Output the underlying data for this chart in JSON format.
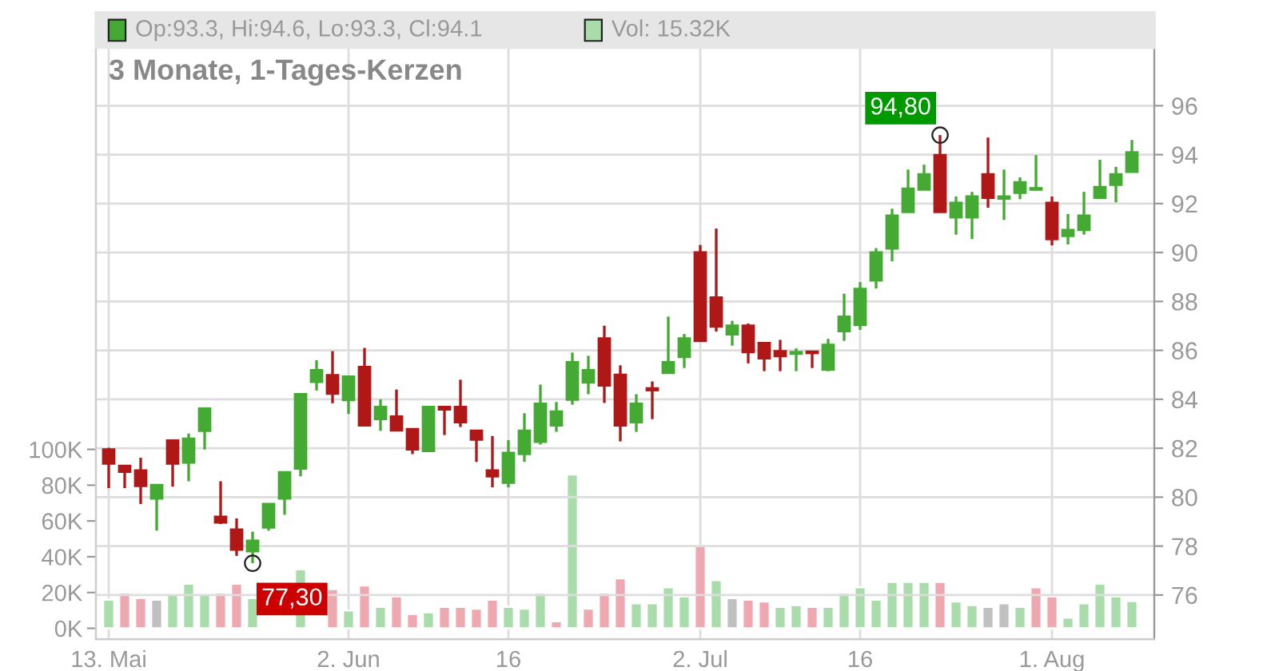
{
  "chart_data": {
    "type": "candlestick",
    "title": "3 Monate, 1-Tages-Kerzen",
    "categories": [
      "13. Mai",
      null,
      null,
      null,
      null,
      null,
      null,
      null,
      null,
      null,
      null,
      null,
      null,
      null,
      null,
      "2. Jun",
      null,
      null,
      null,
      null,
      null,
      null,
      null,
      null,
      null,
      "16",
      null,
      null,
      null,
      null,
      null,
      null,
      null,
      null,
      null,
      null,
      null,
      "2. Jul",
      null,
      null,
      null,
      null,
      null,
      null,
      null,
      null,
      null,
      "16",
      null,
      null,
      null,
      null,
      null,
      null,
      null,
      null,
      null,
      null,
      null,
      "1. Aug",
      null,
      null,
      null,
      null,
      null
    ],
    "series": [
      {
        "type": "bar",
        "axis": "y",
        "values": [
          16,
          20,
          17,
          16,
          19,
          25,
          19,
          20,
          25,
          17,
          null,
          null,
          33,
          null,
          22,
          10,
          24,
          12,
          18,
          8,
          9,
          12,
          12,
          11,
          16,
          12,
          11,
          20,
          4,
          86,
          11,
          20,
          28,
          14,
          14,
          23,
          18,
          46,
          27,
          17,
          16,
          15,
          12,
          13,
          12,
          12,
          20,
          23,
          16,
          26,
          26,
          26,
          26,
          15,
          13,
          12,
          14,
          12,
          23,
          18,
          6,
          14,
          25,
          18,
          15.32
        ],
        "colors": [
          "#a9dcaa",
          "#eea8b0",
          "#eea8b0",
          "#c0c0c0",
          "#a9dcaa",
          "#a9dcaa",
          "#a9dcaa",
          "#eea8b0",
          "#eea8b0",
          "#a9dcaa",
          "#a9dcaa",
          "#a9dcaa",
          "#a9dcaa",
          "#a9dcaa",
          "#eea8b0",
          "#a9dcaa",
          "#eea8b0",
          "#a9dcaa",
          "#eea8b0",
          "#eea8b0",
          "#a9dcaa",
          "#eea8b0",
          "#eea8b0",
          "#eea8b0",
          "#eea8b0",
          "#a9dcaa",
          "#a9dcaa",
          "#a9dcaa",
          "#eea8b0",
          "#a9dcaa",
          "#eea8b0",
          "#eea8b0",
          "#eea8b0",
          "#a9dcaa",
          "#a9dcaa",
          "#a9dcaa",
          "#a9dcaa",
          "#eea8b0",
          "#a9dcaa",
          "#c0c0c0",
          "#eea8b0",
          "#eea8b0",
          "#a9dcaa",
          "#a9dcaa",
          "#eea8b0",
          "#a9dcaa",
          "#a9dcaa",
          "#a9dcaa",
          "#a9dcaa",
          "#a9dcaa",
          "#a9dcaa",
          "#a9dcaa",
          "#eea8b0",
          "#a9dcaa",
          "#a9dcaa",
          "#c0c0c0",
          "#c0c0c0",
          "#a9dcaa",
          "#eea8b0",
          "#eea8b0",
          "#a9dcaa",
          "#a9dcaa",
          "#a9dcaa",
          "#a9dcaa",
          "#a9dcaa"
        ]
      },
      {
        "axis": "y2",
        "ohlc": [
          [
            81.95,
            82.02,
            80.37,
            81.37
          ],
          [
            81.28,
            81.28,
            80.37,
            81.04
          ],
          [
            81.09,
            81.61,
            79.72,
            80.46
          ],
          [
            79.94,
            80.5,
            78.63,
            80.5
          ],
          [
            82.32,
            82.32,
            80.43,
            81.37
          ],
          [
            81.41,
            82.6,
            80.65,
            82.39
          ],
          [
            82.71,
            83.62,
            81.95,
            83.62
          ],
          [
            79.2,
            80.65,
            78.9,
            78.96
          ],
          [
            78.68,
            79.13,
            77.6,
            77.85
          ],
          [
            77.79,
            78.59,
            77.3,
            78.22
          ],
          [
            78.76,
            79.72,
            78.63,
            79.72
          ],
          [
            79.94,
            81.02,
            79.28,
            81.02
          ],
          [
            81.17,
            84.21,
            80.85,
            84.21
          ],
          [
            84.71,
            85.6,
            84.36,
            85.19
          ],
          [
            84.99,
            85.97,
            83.84,
            84.23
          ],
          [
            83.97,
            84.93,
            83.4,
            84.93
          ],
          [
            85.32,
            86.1,
            82.93,
            82.93
          ],
          [
            83.19,
            84.0,
            82.71,
            83.69
          ],
          [
            83.3,
            84.4,
            82.73,
            82.73
          ],
          [
            82.78,
            82.78,
            81.76,
            81.95
          ],
          [
            81.89,
            83.69,
            81.89,
            83.69
          ],
          [
            83.69,
            83.69,
            82.54,
            83.58
          ],
          [
            83.69,
            84.8,
            82.87,
            83.06
          ],
          [
            82.72,
            82.72,
            81.44,
            82.35
          ],
          [
            81.09,
            82.5,
            80.4,
            80.85
          ],
          [
            80.59,
            82.33,
            80.4,
            81.81
          ],
          [
            81.76,
            83.43,
            81.44,
            82.72
          ],
          [
            82.26,
            84.6,
            82.15,
            83.82
          ],
          [
            82.93,
            83.89,
            82.67,
            83.5
          ],
          [
            83.98,
            85.91,
            83.78,
            85.52
          ],
          [
            84.69,
            85.78,
            84.21,
            85.19
          ],
          [
            86.49,
            87.01,
            83.85,
            84.56
          ],
          [
            85.0,
            85.39,
            82.28,
            82.93
          ],
          [
            83.06,
            84.21,
            82.67,
            83.82
          ],
          [
            84.45,
            84.73,
            83.19,
            84.37
          ],
          [
            85.08,
            87.38,
            85.08,
            85.52
          ],
          [
            85.73,
            86.67,
            85.28,
            86.49
          ],
          [
            90.01,
            90.31,
            86.38,
            86.38
          ],
          [
            88.16,
            90.98,
            86.77,
            86.97
          ],
          [
            86.65,
            87.21,
            86.19,
            87.01
          ],
          [
            87.01,
            87.1,
            85.47,
            85.93
          ],
          [
            86.3,
            86.3,
            85.15,
            85.67
          ],
          [
            85.97,
            86.43,
            85.15,
            85.76
          ],
          [
            85.86,
            86.08,
            85.15,
            85.93
          ],
          [
            85.95,
            85.95,
            85.28,
            85.89
          ],
          [
            85.21,
            86.47,
            85.15,
            86.23
          ],
          [
            86.78,
            88.32,
            86.39,
            87.38
          ],
          [
            87.04,
            88.79,
            86.84,
            88.51
          ],
          [
            88.86,
            90.18,
            88.53,
            90.01
          ],
          [
            90.16,
            91.79,
            89.64,
            91.51
          ],
          [
            91.66,
            93.39,
            91.66,
            92.61
          ],
          [
            92.57,
            93.59,
            92.57,
            93.2
          ],
          [
            93.98,
            94.8,
            91.66,
            91.66
          ],
          [
            91.44,
            92.29,
            90.73,
            92.03
          ],
          [
            91.44,
            92.48,
            90.55,
            92.29
          ],
          [
            93.2,
            94.7,
            91.83,
            92.24
          ],
          [
            92.2,
            93.39,
            91.33,
            92.29
          ],
          [
            92.44,
            93.07,
            92.18,
            92.87
          ],
          [
            92.57,
            93.98,
            92.57,
            92.61
          ],
          [
            92.03,
            92.29,
            90.29,
            90.55
          ],
          [
            90.68,
            91.57,
            90.33,
            90.92
          ],
          [
            90.92,
            92.48,
            90.73,
            91.51
          ],
          [
            92.24,
            93.79,
            92.24,
            92.68
          ],
          [
            92.77,
            93.5,
            92.05,
            93.2
          ],
          [
            93.3,
            94.6,
            93.3,
            94.1
          ]
        ],
        "colors": [
          "#b01818",
          "#b01818",
          "#b01818",
          "#44aa33",
          "#b01818",
          "#44aa33",
          "#44aa33",
          "#b01818",
          "#b01818",
          "#44aa33",
          "#44aa33",
          "#44aa33",
          "#44aa33",
          "#44aa33",
          "#b01818",
          "#44aa33",
          "#b01818",
          "#44aa33",
          "#b01818",
          "#b01818",
          "#44aa33",
          "#b01818",
          "#b01818",
          "#b01818",
          "#b01818",
          "#44aa33",
          "#44aa33",
          "#44aa33",
          "#44aa33",
          "#44aa33",
          "#44aa33",
          "#b01818",
          "#b01818",
          "#44aa33",
          "#b01818",
          "#44aa33",
          "#44aa33",
          "#b01818",
          "#b01818",
          "#44aa33",
          "#b01818",
          "#b01818",
          "#b01818",
          "#44aa33",
          "#b01818",
          "#44aa33",
          "#44aa33",
          "#44aa33",
          "#44aa33",
          "#44aa33",
          "#44aa33",
          "#44aa33",
          "#b01818",
          "#44aa33",
          "#44aa33",
          "#b01818",
          "#44aa33",
          "#44aa33",
          "#44aa33",
          "#b01818",
          "#44aa33",
          "#44aa33",
          "#44aa33",
          "#44aa33",
          "#44aa33"
        ]
      }
    ],
    "ylim": [
      -6,
      344
    ],
    "yticks": [
      {
        "value": 0,
        "label": "0K"
      },
      {
        "value": 20,
        "label": "20K"
      },
      {
        "value": 40,
        "label": "40K"
      },
      {
        "value": 60,
        "label": "60K"
      },
      {
        "value": 80,
        "label": "80K"
      },
      {
        "value": 100,
        "label": "100K"
      }
    ],
    "y2lim": [
      74.2,
      99.8
    ],
    "y2ticks": [
      76,
      78,
      80,
      82,
      84,
      86,
      88,
      90,
      92,
      94,
      96
    ],
    "grid": true,
    "annotations": [
      "Op:93.3, Hi:94.6, Lo:93.3, Cl:94.1",
      "Vol: 15.32K",
      "94,80",
      "77,30"
    ]
  }
}
